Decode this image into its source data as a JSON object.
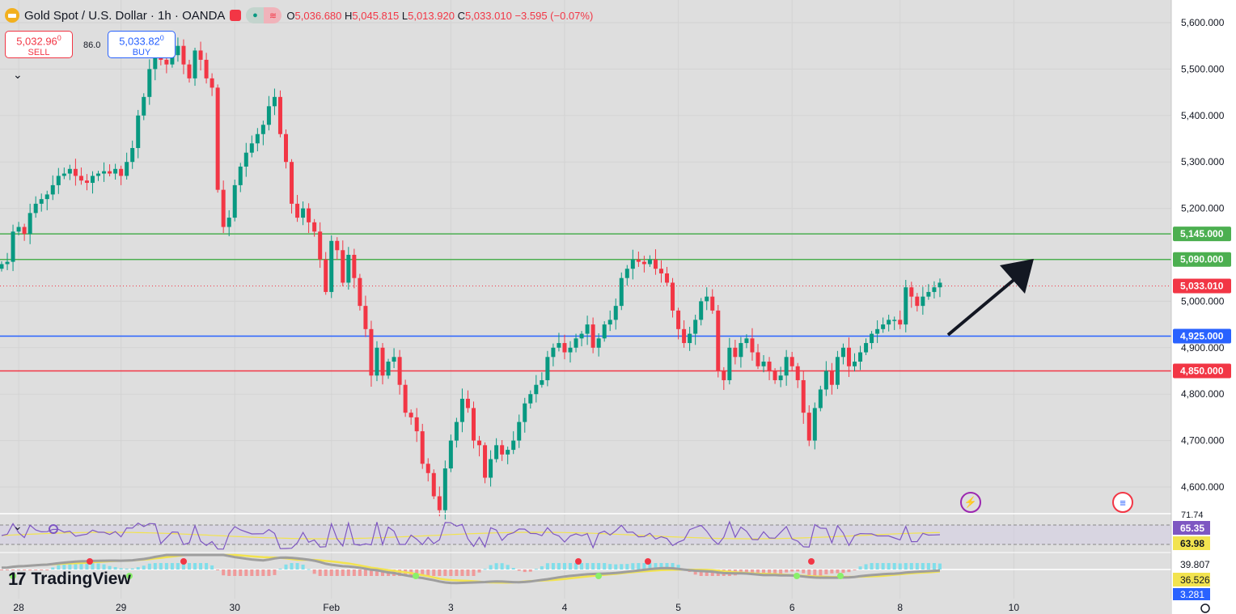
{
  "header": {
    "title": "Gold Spot / U.S. Dollar · 1h · OANDA",
    "ohlc": [
      {
        "label": "O",
        "value": "5,036.680"
      },
      {
        "label": "H",
        "value": "5,045.815"
      },
      {
        "label": "L",
        "value": "5,013.920"
      },
      {
        "label": "C",
        "value": "5,033.010"
      },
      {
        "label": "",
        "value": "−3.595 (−0.07%)"
      }
    ]
  },
  "trade": {
    "sell_price": "5,032.96",
    "sell_sup": "0",
    "sell_label": "SELL",
    "buy_price": "5,033.82",
    "buy_sup": "0",
    "buy_label": "BUY",
    "spread": "86.0"
  },
  "brand": "TradingView",
  "colors": {
    "up": "#089981",
    "down": "#f23645",
    "green_line": "#4caf50",
    "blue_line": "#2962ff",
    "red_line": "#f23645"
  },
  "chart_data": {
    "type": "candlestick",
    "y_ticks": [
      5600,
      5500,
      5400,
      5300,
      5200,
      5000,
      4900,
      4800,
      4700,
      4600
    ],
    "y_tick_labels": [
      "5,600.000",
      "5,500.000",
      "5,400.000",
      "5,300.000",
      "5,200.000",
      "5,000.000",
      "4,900.000",
      "4,800.000",
      "4,700.000",
      "4,600.000"
    ],
    "ylim": [
      4560,
      5640
    ],
    "x_labels": [
      {
        "label": "28",
        "index": 3
      },
      {
        "label": "29",
        "index": 21
      },
      {
        "label": "30",
        "index": 41
      },
      {
        "label": "Feb",
        "index": 58
      },
      {
        "label": "3",
        "index": 79
      },
      {
        "label": "4",
        "index": 99
      },
      {
        "label": "5",
        "index": 119
      },
      {
        "label": "6",
        "index": 139
      },
      {
        "label": "8",
        "index": 158
      },
      {
        "label": "10",
        "index": 178
      }
    ],
    "horizontal_levels": [
      {
        "value": 5145,
        "label": "5,145.000",
        "color": "#4caf50"
      },
      {
        "value": 5090,
        "label": "5,090.000",
        "color": "#4caf50"
      },
      {
        "value": 4925,
        "label": "4,925.000",
        "color": "#2962ff"
      },
      {
        "value": 4850,
        "label": "4,850.000",
        "color": "#f23645"
      }
    ],
    "last_price": {
      "value": 5033.01,
      "label": "5,033.010"
    },
    "closes": [
      5080,
      5085,
      5150,
      5160,
      5145,
      5190,
      5210,
      5220,
      5230,
      5250,
      5270,
      5275,
      5285,
      5270,
      5260,
      5255,
      5270,
      5275,
      5280,
      5275,
      5285,
      5270,
      5300,
      5330,
      5400,
      5440,
      5500,
      5560,
      5520,
      5510,
      5530,
      5550,
      5510,
      5480,
      5540,
      5520,
      5480,
      5460,
      5240,
      5160,
      5180,
      5250,
      5290,
      5320,
      5340,
      5360,
      5380,
      5420,
      5440,
      5360,
      5300,
      5210,
      5180,
      5200,
      5170,
      5150,
      5090,
      5020,
      5130,
      5110,
      5040,
      5100,
      5050,
      4990,
      4940,
      4840,
      4900,
      4840,
      4870,
      4880,
      4820,
      4760,
      4750,
      4720,
      4650,
      4630,
      4580,
      4550,
      4640,
      4700,
      4740,
      4790,
      4770,
      4700,
      4690,
      4620,
      4660,
      4690,
      4670,
      4680,
      4700,
      4740,
      4780,
      4800,
      4820,
      4830,
      4880,
      4900,
      4910,
      4890,
      4900,
      4920,
      4930,
      4950,
      4900,
      4920,
      4950,
      4960,
      4990,
      5050,
      5070,
      5090,
      5085,
      5080,
      5090,
      5070,
      5060,
      5040,
      4980,
      4940,
      4910,
      4930,
      4960,
      5000,
      5010,
      4980,
      4850,
      4830,
      4900,
      4880,
      4910,
      4920,
      4890,
      4860,
      4870,
      4850,
      4830,
      4840,
      4880,
      4860,
      4830,
      4760,
      4700,
      4770,
      4810,
      4850,
      4820,
      4880,
      4900,
      4860,
      4870,
      4890,
      4910,
      4930,
      4940,
      4950,
      4960,
      4960,
      4950,
      5030,
      5010,
      4990,
      5010,
      5020,
      5030,
      5040
    ]
  },
  "indicators": {
    "rsi": {
      "labels": [
        "71.74",
        "65.35",
        "63.98"
      ],
      "colors": [
        "#7e57c2",
        "#f2e34f"
      ]
    },
    "macd": {
      "labels": [
        "39.807",
        "36.526",
        "3.281"
      ],
      "colors": [
        "#ffffff",
        "#f2e34f",
        "#2962ff"
      ]
    }
  }
}
